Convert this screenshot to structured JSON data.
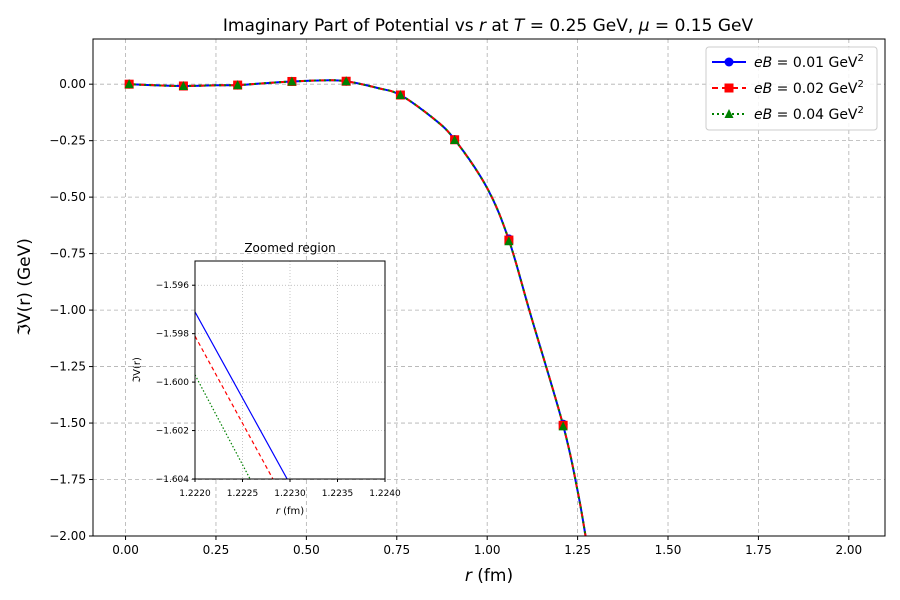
{
  "chart_data": [
    {
      "type": "line",
      "title": "Imaginary Part of Potential vs r at T = 0.25 GeV, μ = 0.15 GeV",
      "title_parts": {
        "prefix": "Imaginary Part of Potential vs ",
        "r": "r",
        "mid1": " at ",
        "T": "T",
        "mid2": " = 0.25 GeV, ",
        "mu": "μ",
        "suffix": " = 0.15 GeV"
      },
      "xlabel": "r (fm)",
      "xlabel_parts": {
        "var": "r",
        "unit": " (fm)"
      },
      "ylabel": "ℑV(r) (GeV)",
      "xlim": [
        -0.09,
        2.1
      ],
      "ylim": [
        -2.0,
        0.2
      ],
      "xticks": [
        0.0,
        0.25,
        0.5,
        0.75,
        1.0,
        1.25,
        1.5,
        1.75,
        2.0
      ],
      "xtick_labels": [
        "0.00",
        "0.25",
        "0.50",
        "0.75",
        "1.00",
        "1.25",
        "1.50",
        "1.75",
        "2.00"
      ],
      "yticks": [
        0.0,
        -0.25,
        -0.5,
        -0.75,
        -1.0,
        -1.25,
        -1.5,
        -1.75,
        -2.0
      ],
      "ytick_labels": [
        "0.00",
        "−0.25",
        "−0.50",
        "−0.75",
        "−1.00",
        "−1.25",
        "−1.50",
        "−1.75",
        "−2.00"
      ],
      "grid": true,
      "legend_position": "top-right",
      "curve": {
        "x": [
          0.01,
          0.1,
          0.16,
          0.25,
          0.31,
          0.4,
          0.46,
          0.55,
          0.61,
          0.7,
          0.76,
          0.85,
          0.91,
          1.0,
          1.06,
          1.12,
          1.21,
          1.25,
          1.272
        ],
        "y": [
          0.0,
          -0.006,
          -0.008,
          -0.005,
          -0.004,
          0.006,
          0.012,
          0.017,
          0.013,
          -0.018,
          -0.048,
          -0.15,
          -0.245,
          -0.46,
          -0.69,
          -1.02,
          -1.51,
          -1.8,
          -2.0
        ]
      },
      "marker_x": [
        0.01,
        0.16,
        0.31,
        0.46,
        0.61,
        0.76,
        0.91,
        1.06,
        1.21
      ],
      "series": [
        {
          "name": "eB = 0.01 GeV²",
          "legend_var": "eB",
          "legend_value": " = 0.01 GeV",
          "legend_sup": "2",
          "color": "#0000ff",
          "marker": "circle",
          "linestyle": "solid",
          "marker_y": [
            0.0,
            -0.008,
            -0.004,
            0.012,
            0.013,
            -0.048,
            -0.245,
            -0.685,
            -1.505
          ]
        },
        {
          "name": "eB = 0.02 GeV²",
          "legend_var": "eB",
          "legend_value": " = 0.02 GeV",
          "legend_sup": "2",
          "color": "#ff0000",
          "marker": "square",
          "linestyle": "dashed",
          "marker_y": [
            0.0,
            -0.008,
            -0.004,
            0.012,
            0.013,
            -0.048,
            -0.246,
            -0.69,
            -1.51
          ]
        },
        {
          "name": "eB = 0.04 GeV²",
          "legend_var": "eB",
          "legend_value": " = 0.04 GeV",
          "legend_sup": "2",
          "color": "#008000",
          "marker": "triangle",
          "linestyle": "dotted",
          "marker_y": [
            0.0,
            -0.008,
            -0.004,
            0.012,
            0.013,
            -0.048,
            -0.247,
            -0.695,
            -1.515
          ]
        }
      ]
    },
    {
      "type": "line",
      "title": "Zoomed region",
      "xlabel": "r (fm)",
      "xlabel_parts": {
        "var": "r",
        "unit": " (fm)"
      },
      "ylabel": "ℑV(r)",
      "xlim": [
        1.222,
        1.224
      ],
      "ylim": [
        -1.604,
        -1.595
      ],
      "xticks": [
        1.222,
        1.2225,
        1.223,
        1.2235,
        1.224
      ],
      "xtick_labels": [
        "1.2220",
        "1.2225",
        "1.2230",
        "1.2235",
        "1.2240"
      ],
      "yticks": [
        -1.596,
        -1.598,
        -1.6,
        -1.602,
        -1.604
      ],
      "ytick_labels": [
        "−1.596",
        "−1.598",
        "−1.600",
        "−1.602",
        "−1.604"
      ],
      "grid": true,
      "series": [
        {
          "name": "eB = 0.01 GeV²",
          "color": "#0000ff",
          "linestyle": "solid",
          "x": [
            1.222,
            1.22297
          ],
          "y": [
            -1.5971,
            -1.604
          ]
        },
        {
          "name": "eB = 0.02 GeV²",
          "color": "#ff0000",
          "linestyle": "dashed",
          "x": [
            1.222,
            1.22282
          ],
          "y": [
            -1.5981,
            -1.604
          ]
        },
        {
          "name": "eB = 0.04 GeV²",
          "color": "#008000",
          "linestyle": "dotted",
          "x": [
            1.222,
            1.22258
          ],
          "y": [
            -1.5997,
            -1.604
          ]
        }
      ]
    }
  ]
}
